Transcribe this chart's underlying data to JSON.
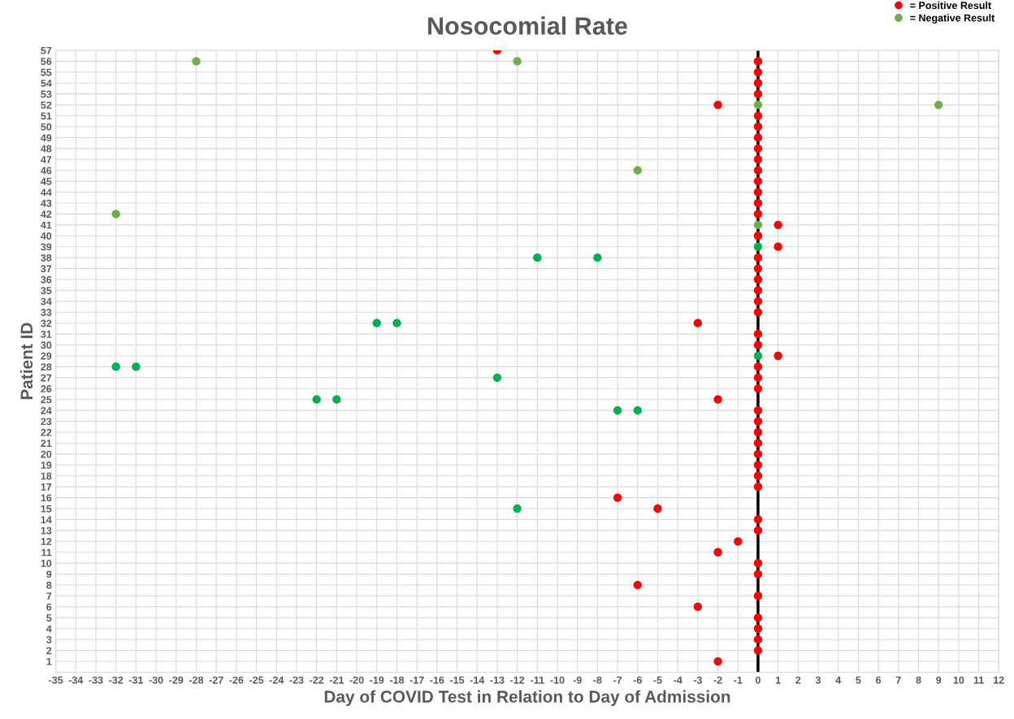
{
  "chart_data": {
    "type": "scatter",
    "title": "Nosocomial Rate",
    "xlabel": "Day of COVID Test in Relation to Day of Admission",
    "ylabel": "Patient ID",
    "xlim": [
      -35,
      12
    ],
    "xticks": [
      -35,
      -34,
      -33,
      -32,
      -31,
      -30,
      -29,
      -28,
      -27,
      -26,
      -25,
      -24,
      -23,
      -22,
      -21,
      -20,
      -19,
      -18,
      -17,
      -16,
      -15,
      -14,
      -13,
      -12,
      -11,
      -10,
      -9,
      -8,
      -7,
      -6,
      -5,
      -4,
      -3,
      -2,
      -1,
      0,
      1,
      2,
      3,
      4,
      5,
      6,
      7,
      8,
      9,
      10,
      11,
      12
    ],
    "ylim": [
      0,
      57
    ],
    "yticks": [
      1,
      2,
      3,
      4,
      5,
      6,
      7,
      8,
      9,
      10,
      11,
      12,
      13,
      14,
      15,
      16,
      17,
      18,
      19,
      20,
      21,
      22,
      23,
      24,
      25,
      26,
      27,
      28,
      29,
      30,
      31,
      32,
      33,
      34,
      35,
      36,
      37,
      38,
      39,
      40,
      41,
      42,
      43,
      44,
      45,
      46,
      47,
      48,
      49,
      50,
      51,
      52,
      53,
      54,
      55,
      56,
      57
    ],
    "grid": true,
    "legend": "top right",
    "marker": "circle",
    "ref_lines": [
      {
        "axis": "x",
        "value": 0,
        "color": "#000000",
        "line_style": "solid"
      }
    ],
    "series": [
      {
        "name": "= Positive Result",
        "color": "#ff0000",
        "x": [
          -13,
          0,
          0,
          0,
          0,
          -2,
          0,
          0,
          0,
          0,
          0,
          0,
          0,
          0,
          0,
          0,
          1,
          0,
          1,
          0,
          0,
          0,
          0,
          0,
          0,
          -3,
          0,
          0,
          1,
          0,
          0,
          0,
          -2,
          0,
          0,
          0,
          0,
          0,
          0,
          0,
          0,
          -7,
          -5,
          0,
          0,
          -1,
          -2,
          0,
          0,
          -6,
          0,
          -3,
          0,
          0,
          0,
          0,
          -2
        ],
        "values": [
          57,
          56,
          55,
          54,
          53,
          52,
          51,
          50,
          49,
          48,
          47,
          46,
          45,
          44,
          43,
          42,
          41,
          40,
          39,
          38,
          37,
          36,
          35,
          34,
          33,
          32,
          31,
          30,
          29,
          28,
          27,
          26,
          25,
          24,
          23,
          22,
          21,
          20,
          19,
          18,
          17,
          16,
          15,
          14,
          13,
          12,
          11,
          10,
          9,
          8,
          7,
          6,
          5,
          4,
          3,
          2,
          1
        ]
      },
      {
        "name": "= Negative Result",
        "color": "#70ad47",
        "x": [
          -28,
          -12,
          0,
          9,
          -6,
          -32,
          0,
          0,
          -11,
          -8,
          -19,
          -18,
          0,
          -32,
          -31,
          -13,
          -22,
          -21,
          -7,
          -6,
          -12
        ],
        "values": [
          56,
          56,
          52,
          52,
          46,
          42,
          41,
          39,
          38,
          38,
          32,
          32,
          29,
          28,
          28,
          27,
          25,
          25,
          24,
          24,
          15
        ],
        "colors": [
          "#70ad47",
          "#70ad47",
          "#70ad47",
          "#70ad47",
          "#70ad47",
          "#70ad47",
          "#70ad47",
          "#00b050",
          "#00b050",
          "#00b050",
          "#00b050",
          "#00b050",
          "#00b050",
          "#00b050",
          "#00b050",
          "#00b050",
          "#00b050",
          "#00b050",
          "#00b050",
          "#00b050",
          "#00b050"
        ]
      }
    ]
  }
}
